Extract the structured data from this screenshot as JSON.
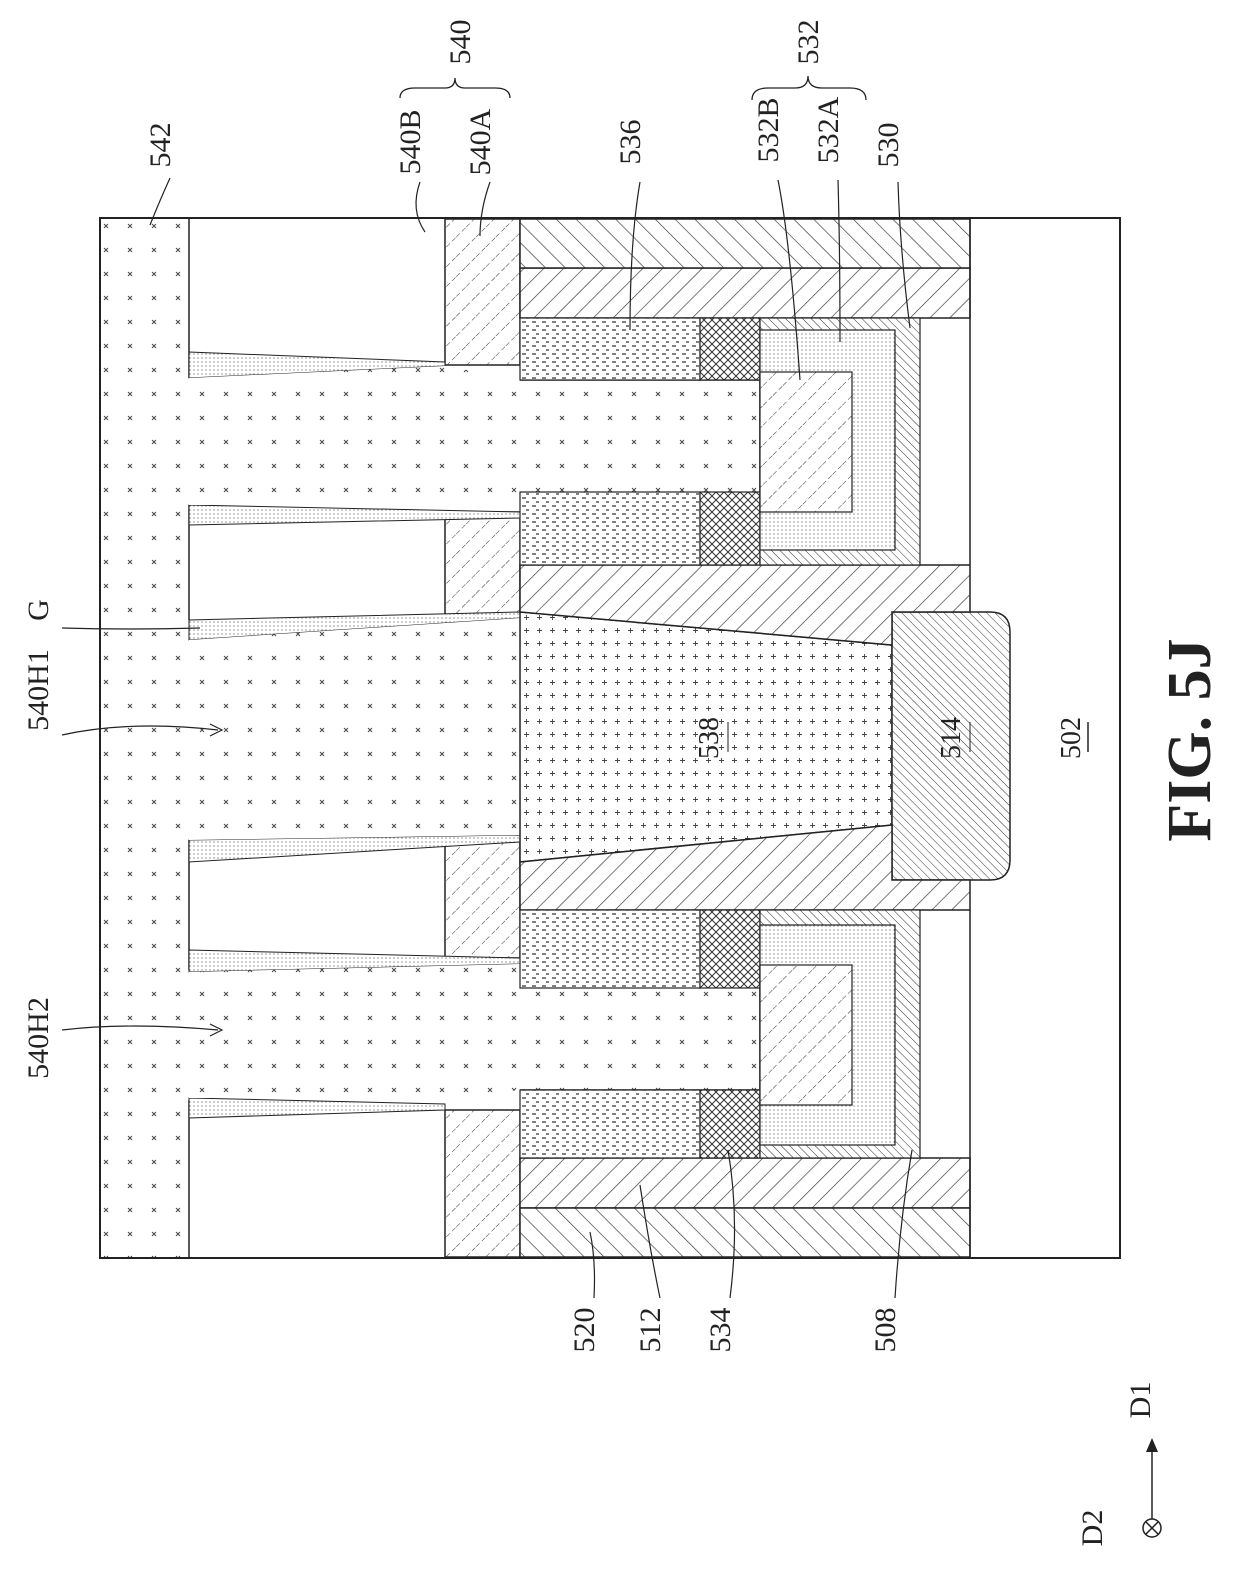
{
  "figure": {
    "caption": "FIG. 5J",
    "regions": {
      "r542": "542",
      "r540B": "540B",
      "r540A": "540A",
      "r540": "540",
      "r536": "536",
      "r532B": "532B",
      "r532A": "532A",
      "r532": "532",
      "r530": "530",
      "r540H1": "540H1",
      "rG": "G",
      "r540H2": "540H2",
      "r538": "538",
      "r514": "514",
      "r502": "502",
      "r520": "520",
      "r512": "512",
      "r534": "534",
      "r508": "508"
    },
    "axes": {
      "d1": "D1",
      "d2": "D2"
    }
  }
}
